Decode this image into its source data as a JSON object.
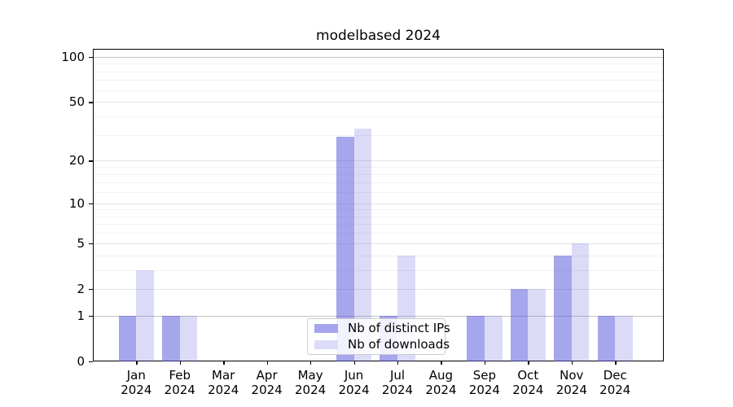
{
  "title": "modelbased 2024",
  "chart_data": {
    "type": "bar",
    "title": "modelbased 2024",
    "categories": [
      "Jan 2024",
      "Feb 2024",
      "Mar 2024",
      "Apr 2024",
      "May 2024",
      "Jun 2024",
      "Jul 2024",
      "Aug 2024",
      "Sep 2024",
      "Oct 2024",
      "Nov 2024",
      "Dec 2024"
    ],
    "series": [
      {
        "name": "Nb of distinct IPs",
        "values": [
          1,
          1,
          0,
          0,
          0,
          29,
          1,
          0,
          1,
          2,
          4,
          1
        ],
        "bar_color": "rgba(85,85,221,0.52)",
        "swatch_color": "#a6a6ee"
      },
      {
        "name": "Nb of downloads",
        "values": [
          3,
          1,
          0,
          0,
          0,
          33,
          4,
          0,
          1,
          2,
          5,
          1
        ],
        "bar_color": "rgba(85,85,221,0.21)",
        "swatch_color": "#dcdcf8"
      }
    ],
    "xlabel": "",
    "ylabel": "",
    "yscale": "log1p",
    "ylim": [
      0,
      113
    ],
    "y_ticks": [
      0,
      1,
      2,
      5,
      10,
      20,
      50,
      100
    ],
    "minor_gridlines": [
      3,
      4,
      6,
      7,
      8,
      9,
      12,
      14,
      16,
      18,
      30,
      40,
      60,
      70,
      80,
      90
    ],
    "emphasized_gridlines": [
      1,
      100
    ],
    "grid": true,
    "legend_position": "lower center",
    "colors": {
      "spine": "#000000",
      "grid_minor": "#f2f2f2",
      "grid_major": "#e4e4e4",
      "grid_emphasized": "#c2c2c2",
      "text": "#000000"
    }
  }
}
